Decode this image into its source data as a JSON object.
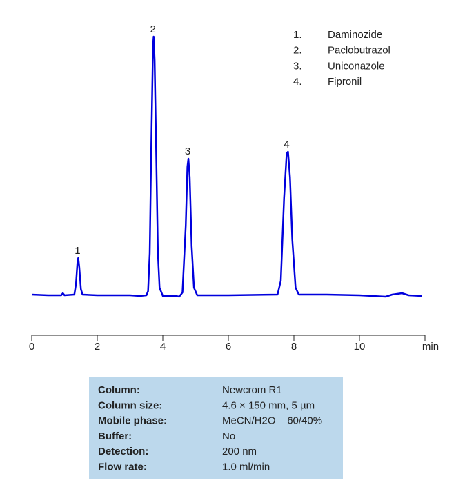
{
  "chart_data": {
    "type": "line",
    "color": "#0000dd",
    "x": [
      0,
      0.5,
      0.9,
      0.95,
      1.0,
      1.3,
      1.35,
      1.4,
      1.42,
      1.45,
      1.5,
      1.55,
      2,
      3,
      3.3,
      3.5,
      3.55,
      3.6,
      3.65,
      3.7,
      3.72,
      3.75,
      3.8,
      3.85,
      3.9,
      4.0,
      4.4,
      4.5,
      4.6,
      4.7,
      4.75,
      4.78,
      4.82,
      4.88,
      4.95,
      5.05,
      6,
      7.5,
      7.6,
      7.7,
      7.78,
      7.82,
      7.88,
      7.95,
      8.05,
      8.15,
      9,
      10,
      10.8,
      11,
      11.3,
      11.5,
      11.9
    ],
    "values": [
      0,
      -1,
      -1,
      2,
      -1,
      0,
      15,
      50,
      53,
      40,
      8,
      0,
      -1,
      -1,
      -2,
      -1,
      5,
      60,
      220,
      360,
      374,
      340,
      200,
      60,
      10,
      -2,
      -2,
      -3,
      3,
      100,
      185,
      197,
      170,
      70,
      10,
      -1,
      -1,
      0,
      20,
      140,
      205,
      207,
      170,
      80,
      10,
      0,
      0,
      -1,
      -3,
      0,
      2,
      -1,
      -2
    ],
    "xlim": [
      0,
      12
    ],
    "xticks": [
      0,
      2,
      4,
      6,
      8,
      10
    ],
    "ylim": [
      -60,
      380
    ],
    "x_label": "min",
    "annotations": [
      {
        "text": "1",
        "x": 1.42,
        "y": 53
      },
      {
        "text": "2",
        "x": 3.72,
        "y": 374
      },
      {
        "text": "3",
        "x": 4.78,
        "y": 197
      },
      {
        "text": "4",
        "x": 7.8,
        "y": 207
      }
    ],
    "legend": [
      {
        "number": "1.",
        "name": "Daminozide"
      },
      {
        "number": "2.",
        "name": "Paclobutrazol"
      },
      {
        "number": "3.",
        "name": "Uniconazole"
      },
      {
        "number": "4.",
        "name": "Fipronil"
      }
    ]
  },
  "conditions": [
    [
      "Column:",
      "Newcrom R1"
    ],
    [
      "Column size:",
      "4.6 × 150 mm, 5 µm"
    ],
    [
      "Mobile phase:",
      "MeCN/H2O – 60/40%"
    ],
    [
      "Buffer:",
      "No"
    ],
    [
      "Detection:",
      "200 nm"
    ],
    [
      "Flow rate:",
      "1.0 ml/min"
    ]
  ]
}
